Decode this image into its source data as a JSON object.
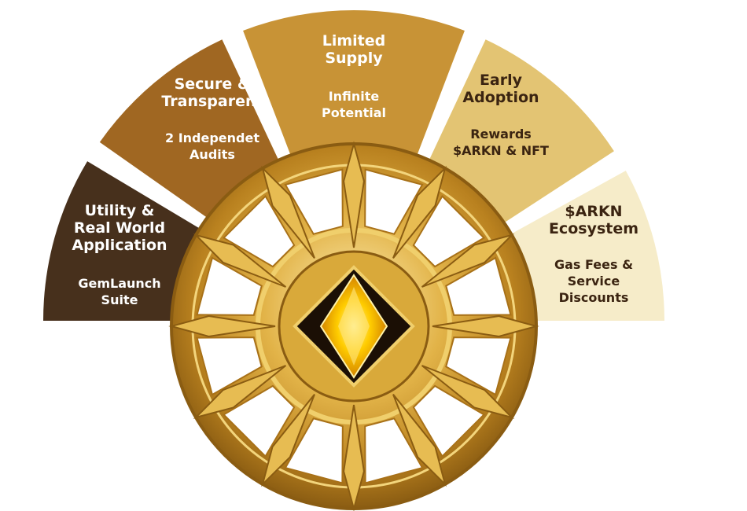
{
  "segments": [
    {
      "title": "Utility &\nReal World\nApplication",
      "subtitle": "GemLaunch\nSuite",
      "color": "#47301c"
    },
    {
      "title": "Secure &\nTransparent",
      "subtitle": "2 Independet\nAudits",
      "color": "#a06722"
    },
    {
      "title": "Limited\nSupply",
      "subtitle": "Infinite\nPotential",
      "color": "#c89336"
    },
    {
      "title": "Early\nAdoption",
      "subtitle": "Rewards\n$ARKN & NFT",
      "color": "#e3c473"
    },
    {
      "title": "$ARKN\nEcosystem",
      "subtitle": "Gas Fees &\nService\nDiscounts",
      "color": "#f6ecc9"
    }
  ],
  "emblem": {
    "icon": "gold-coin-diamond-icon",
    "gold": "#d9a93a",
    "gem": "#f5b800"
  }
}
